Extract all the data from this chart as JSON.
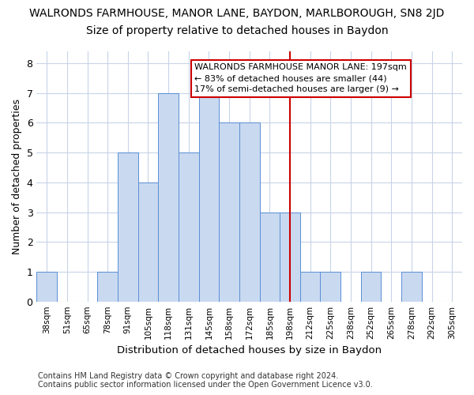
{
  "title": "WALRONDS FARMHOUSE, MANOR LANE, BAYDON, MARLBOROUGH, SN8 2JD",
  "subtitle": "Size of property relative to detached houses in Baydon",
  "xlabel": "Distribution of detached houses by size in Baydon",
  "ylabel": "Number of detached properties",
  "categories": [
    "38sqm",
    "51sqm",
    "65sqm",
    "78sqm",
    "91sqm",
    "105sqm",
    "118sqm",
    "131sqm",
    "145sqm",
    "158sqm",
    "172sqm",
    "185sqm",
    "198sqm",
    "212sqm",
    "225sqm",
    "238sqm",
    "252sqm",
    "265sqm",
    "278sqm",
    "292sqm",
    "305sqm"
  ],
  "values": [
    1,
    0,
    0,
    1,
    5,
    4,
    7,
    5,
    7,
    6,
    6,
    3,
    3,
    1,
    1,
    0,
    1,
    0,
    1,
    0,
    0
  ],
  "bar_color": "#c9d9f0",
  "bar_edge_color": "#5b8fd4",
  "grid_color": "#c8d4e8",
  "background_color": "#ffffff",
  "vline_color": "#cc0000",
  "annotation_line1": "WALRONDS FARMHOUSE MANOR LANE: 197sqm",
  "annotation_line2": "← 83% of detached houses are smaller (44)",
  "annotation_line3": "17% of semi-detached houses are larger (9) →",
  "annotation_box_edge": "#cc0000",
  "footer": "Contains HM Land Registry data © Crown copyright and database right 2024.\nContains public sector information licensed under the Open Government Licence v3.0.",
  "ylim": [
    0,
    8.4
  ],
  "yticks": [
    0,
    1,
    2,
    3,
    4,
    5,
    6,
    7,
    8
  ],
  "title_fontsize": 10,
  "subtitle_fontsize": 10,
  "ylabel_fontsize": 9,
  "xlabel_fontsize": 9.5
}
